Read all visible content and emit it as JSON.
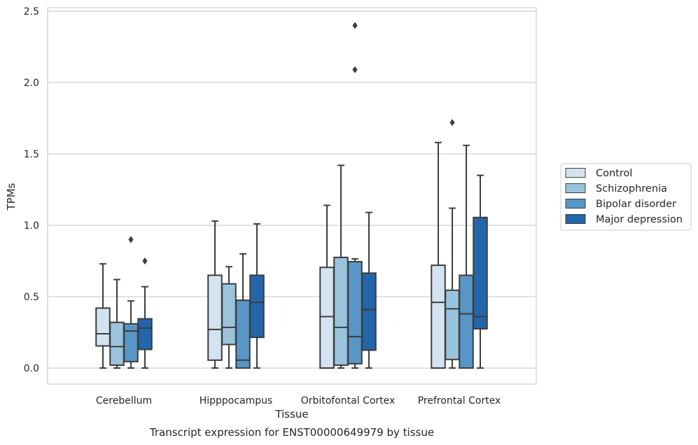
{
  "chart_data": {
    "type": "boxplot",
    "title": "",
    "caption": "Transcript expression for ENST00000649979 by tissue",
    "xlabel": "Tissue",
    "ylabel": "TPMs",
    "ylim": [
      -0.115,
      2.53
    ],
    "yticks": [
      "0.0",
      "0.5",
      "1.0",
      "1.5",
      "2.0",
      "2.5"
    ],
    "ytick_values": [
      0,
      0.5,
      1.0,
      1.5,
      2.0,
      2.5
    ],
    "grid": "horizontal",
    "legend_position": "right",
    "categories": [
      "Cerebellum",
      "Hipppocampus",
      "Orbitofontal Cortex",
      "Prefrontal Cortex"
    ],
    "series": [
      {
        "name": "Control",
        "color": "#d4e3f2",
        "boxes": [
          {
            "whislo": 0.0,
            "q1": 0.155,
            "med": 0.24,
            "q3": 0.42,
            "whishi": 0.73,
            "fliers": []
          },
          {
            "whislo": 0.0,
            "q1": 0.055,
            "med": 0.27,
            "q3": 0.65,
            "whishi": 1.03,
            "fliers": []
          },
          {
            "whislo": 0.0,
            "q1": 0.0,
            "med": 0.36,
            "q3": 0.705,
            "whishi": 1.14,
            "fliers": []
          },
          {
            "whislo": 0.0,
            "q1": 0.0,
            "med": 0.46,
            "q3": 0.72,
            "whishi": 1.58,
            "fliers": []
          }
        ]
      },
      {
        "name": "Schizophrenia",
        "color": "#9ac4de",
        "boxes": [
          {
            "whislo": 0.0,
            "q1": 0.02,
            "med": 0.15,
            "q3": 0.32,
            "whishi": 0.62,
            "fliers": []
          },
          {
            "whislo": 0.0,
            "q1": 0.165,
            "med": 0.285,
            "q3": 0.59,
            "whishi": 0.71,
            "fliers": []
          },
          {
            "whislo": 0.0,
            "q1": 0.02,
            "med": 0.285,
            "q3": 0.775,
            "whishi": 1.42,
            "fliers": []
          },
          {
            "whislo": 0.0,
            "q1": 0.06,
            "med": 0.415,
            "q3": 0.545,
            "whishi": 1.12,
            "fliers": [
              1.72
            ]
          }
        ]
      },
      {
        "name": "Bipolar disorder",
        "color": "#5796c6",
        "boxes": [
          {
            "whislo": 0.0,
            "q1": 0.045,
            "med": 0.26,
            "q3": 0.31,
            "whishi": 0.47,
            "fliers": [
              0.9
            ]
          },
          {
            "whislo": 0.0,
            "q1": 0.0,
            "med": 0.055,
            "q3": 0.475,
            "whishi": 0.8,
            "fliers": []
          },
          {
            "whislo": 0.0,
            "q1": 0.03,
            "med": 0.22,
            "q3": 0.745,
            "whishi": 0.765,
            "fliers": [
              2.09,
              2.4
            ]
          },
          {
            "whislo": 0.0,
            "q1": 0.0,
            "med": 0.38,
            "q3": 0.65,
            "whishi": 1.56,
            "fliers": []
          }
        ]
      },
      {
        "name": "Major depression",
        "color": "#2366a9",
        "boxes": [
          {
            "whislo": 0.0,
            "q1": 0.13,
            "med": 0.28,
            "q3": 0.345,
            "whishi": 0.57,
            "fliers": [
              0.75
            ]
          },
          {
            "whislo": 0.0,
            "q1": 0.215,
            "med": 0.46,
            "q3": 0.65,
            "whishi": 1.01,
            "fliers": []
          },
          {
            "whislo": 0.0,
            "q1": 0.125,
            "med": 0.41,
            "q3": 0.665,
            "whishi": 1.09,
            "fliers": []
          },
          {
            "whislo": 0.0,
            "q1": 0.275,
            "med": 0.36,
            "q3": 1.055,
            "whishi": 1.35,
            "fliers": []
          }
        ]
      }
    ]
  }
}
